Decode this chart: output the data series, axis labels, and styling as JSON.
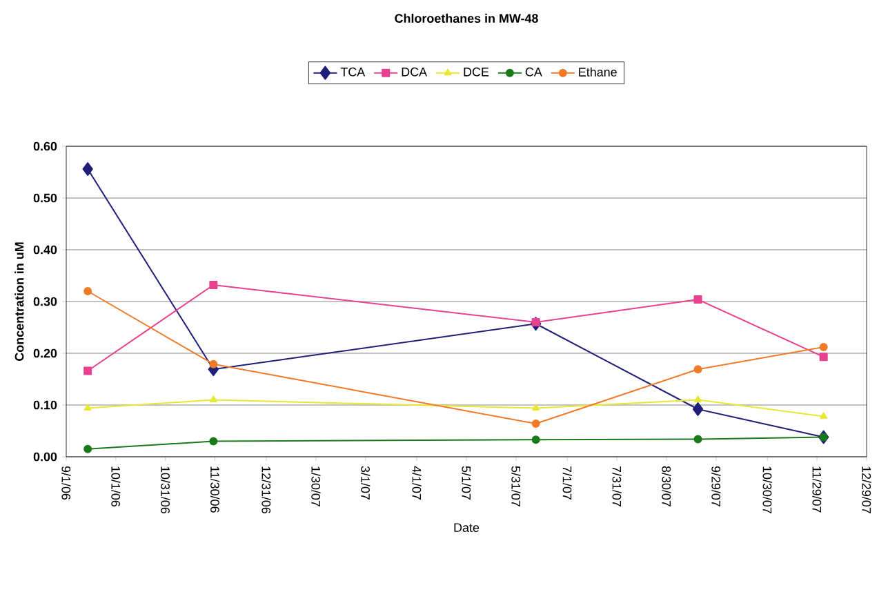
{
  "chart_data": {
    "type": "line",
    "title": "Chloroethanes in MW-48",
    "xlabel": "Date",
    "ylabel": "Concentration in uM",
    "x": [
      "2006-09-14",
      "2006-11-29",
      "2007-06-12",
      "2007-09-18",
      "2007-12-03"
    ],
    "series": [
      {
        "name": "TCA",
        "color": "#1f1f7a",
        "marker": "diamond",
        "values": [
          0.556,
          0.169,
          0.257,
          0.092,
          0.038
        ]
      },
      {
        "name": "DCA",
        "color": "#e8418f",
        "marker": "square",
        "values": [
          0.166,
          0.332,
          0.26,
          0.304,
          0.193
        ]
      },
      {
        "name": "DCE",
        "color": "#e8e830",
        "marker": "triangle",
        "values": [
          0.094,
          0.11,
          0.094,
          0.11,
          0.078
        ]
      },
      {
        "name": "CA",
        "color": "#1a7a1a",
        "marker": "circle",
        "values": [
          0.015,
          0.03,
          0.033,
          0.034,
          0.038
        ]
      },
      {
        "name": "Ethane",
        "color": "#f07a28",
        "marker": "circle",
        "values": [
          0.32,
          0.179,
          0.064,
          0.169,
          0.212
        ]
      }
    ],
    "xlim": [
      "2006-09-01",
      "2007-12-29"
    ],
    "xticks": [
      {
        "value": "2006-09-01",
        "label": "9/1/06"
      },
      {
        "value": "2006-10-01",
        "label": "10/1/06"
      },
      {
        "value": "2006-10-31",
        "label": "10/31/06"
      },
      {
        "value": "2006-11-30",
        "label": "11/30/06"
      },
      {
        "value": "2006-12-31",
        "label": "12/31/06"
      },
      {
        "value": "2007-01-30",
        "label": "1/30/07"
      },
      {
        "value": "2007-03-01",
        "label": "3/1/07"
      },
      {
        "value": "2007-04-01",
        "label": "4/1/07"
      },
      {
        "value": "2007-05-01",
        "label": "5/1/07"
      },
      {
        "value": "2007-05-31",
        "label": "5/31/07"
      },
      {
        "value": "2007-07-01",
        "label": "7/1/07"
      },
      {
        "value": "2007-07-31",
        "label": "7/31/07"
      },
      {
        "value": "2007-08-30",
        "label": "8/30/07"
      },
      {
        "value": "2007-09-29",
        "label": "9/29/07"
      },
      {
        "value": "2007-10-30",
        "label": "10/30/07"
      },
      {
        "value": "2007-11-29",
        "label": "11/29/07"
      },
      {
        "value": "2007-12-29",
        "label": "12/29/07"
      }
    ],
    "ylim": [
      0,
      0.6
    ],
    "yticks": [
      {
        "value": 0,
        "label": "0.00"
      },
      {
        "value": 0.1,
        "label": "0.10"
      },
      {
        "value": 0.2,
        "label": "0.20"
      },
      {
        "value": 0.3,
        "label": "0.30"
      },
      {
        "value": 0.4,
        "label": "0.40"
      },
      {
        "value": 0.5,
        "label": "0.50"
      },
      {
        "value": 0.6,
        "label": "0.60"
      }
    ],
    "grid": "y",
    "legend": "top",
    "line_style": "solid"
  }
}
